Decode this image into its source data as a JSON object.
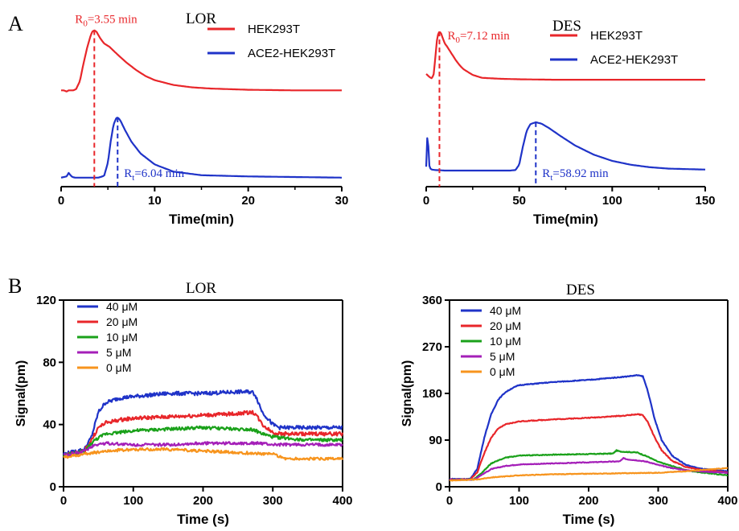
{
  "panel_labels": {
    "a": "A",
    "b": "B"
  },
  "chart_data": [
    {
      "id": "a-lor",
      "type": "line",
      "title": "LOR",
      "xlabel": "Time(min)",
      "ylabel": "",
      "xlim": [
        0,
        30
      ],
      "xticks": [
        0,
        10,
        20,
        30
      ],
      "legend_position": "top-right",
      "series": [
        {
          "name": "HEK293T",
          "color": "#e8262a",
          "offset": 0.58,
          "x": [
            0,
            0.3,
            0.6,
            0.8,
            1.0,
            1.3,
            1.6,
            2.0,
            2.4,
            2.8,
            3.1,
            3.3,
            3.55,
            3.8,
            4.2,
            4.6,
            5.2,
            6.0,
            7.0,
            8.0,
            9.0,
            10,
            12,
            14,
            16,
            20,
            25,
            30
          ],
          "y": [
            0.0,
            0.0,
            -0.02,
            0.0,
            0.0,
            0.0,
            0.02,
            0.15,
            0.45,
            0.72,
            0.88,
            0.97,
            1.0,
            0.97,
            0.86,
            0.78,
            0.72,
            0.6,
            0.46,
            0.34,
            0.24,
            0.17,
            0.09,
            0.05,
            0.03,
            0.01,
            0.0,
            0.0
          ]
        },
        {
          "name": "ACE2-HEK293T",
          "color": "#1f33c8",
          "offset": 0.0,
          "x": [
            0,
            0.6,
            0.8,
            1.0,
            1.2,
            1.5,
            2.0,
            3.0,
            4.0,
            4.6,
            5.0,
            5.3,
            5.6,
            5.9,
            6.04,
            6.3,
            6.8,
            7.5,
            8.5,
            10,
            12,
            15,
            20,
            25,
            30
          ],
          "y": [
            0.0,
            0.02,
            0.08,
            0.04,
            0.01,
            0.0,
            0.0,
            0.0,
            0.0,
            0.03,
            0.25,
            0.6,
            0.88,
            0.99,
            1.0,
            0.96,
            0.8,
            0.6,
            0.4,
            0.22,
            0.1,
            0.04,
            0.02,
            0.01,
            0.0
          ]
        }
      ],
      "markers": [
        {
          "label_base": "R",
          "label_sub": "0",
          "label_value": "=3.55 min",
          "x": 3.55,
          "series": 0,
          "color": "#e8262a",
          "label_side": "above"
        },
        {
          "label_base": "R",
          "label_sub": "t",
          "label_value": "=6.04 min",
          "x": 6.04,
          "series": 1,
          "color": "#1f33c8",
          "label_side": "below"
        }
      ]
    },
    {
      "id": "a-des",
      "type": "line",
      "title": "DES",
      "xlabel": "Time(min)",
      "ylabel": "",
      "xlim": [
        0,
        150
      ],
      "xticks": [
        0,
        50,
        100,
        150
      ],
      "legend_position": "top-right",
      "series": [
        {
          "name": "HEK293T",
          "color": "#e8262a",
          "offset": 0.62,
          "x": [
            0,
            2,
            3,
            4,
            5,
            6,
            7,
            7.12,
            8,
            9,
            10,
            11,
            12,
            14,
            16,
            18,
            20,
            25,
            30,
            40,
            50,
            70,
            100,
            130,
            150
          ],
          "y": [
            0.12,
            0.05,
            0.03,
            0.1,
            0.5,
            0.9,
            0.99,
            1.0,
            0.96,
            0.85,
            0.75,
            0.7,
            0.64,
            0.52,
            0.4,
            0.3,
            0.22,
            0.1,
            0.04,
            0.02,
            0.01,
            0.0,
            0.0,
            0.0,
            0.0
          ]
        },
        {
          "name": "ACE2-HEK293T",
          "color": "#1f33c8",
          "offset": 0.0,
          "x": [
            0,
            0.8,
            1.2,
            1.6,
            2.0,
            3,
            5,
            10,
            20,
            30,
            40,
            45,
            48,
            50,
            52,
            54,
            56,
            58.92,
            62,
            66,
            72,
            80,
            90,
            100,
            110,
            120,
            130,
            150
          ],
          "y": [
            0.08,
            0.9,
            0.45,
            0.12,
            0.05,
            0.02,
            0.01,
            0.0,
            0.0,
            0.0,
            0.0,
            0.0,
            0.01,
            0.12,
            0.5,
            0.82,
            0.96,
            1.0,
            0.97,
            0.88,
            0.72,
            0.52,
            0.33,
            0.2,
            0.12,
            0.07,
            0.04,
            0.02
          ]
        }
      ],
      "markers": [
        {
          "label_base": "R",
          "label_sub": "0",
          "label_value": "=7.12 min",
          "x": 7.12,
          "series": 0,
          "color": "#e8262a",
          "label_side": "right-top"
        },
        {
          "label_base": "R",
          "label_sub": "t",
          "label_value": "=58.92 min",
          "x": 58.92,
          "series": 1,
          "color": "#1f33c8",
          "label_side": "below"
        }
      ]
    },
    {
      "id": "b-lor",
      "type": "line",
      "title": "LOR",
      "xlabel": "Time (s)",
      "ylabel": "Signal(pm)",
      "xlim": [
        0,
        400
      ],
      "ylim": [
        0,
        120
      ],
      "xticks": [
        0,
        100,
        200,
        300,
        400
      ],
      "yticks": [
        0,
        40,
        80,
        120
      ],
      "legend_position": "top-left",
      "series": [
        {
          "name": "40 μM",
          "color": "#1f33c8",
          "noise": 1.2,
          "x": [
            0,
            30,
            40,
            50,
            60,
            80,
            100,
            150,
            200,
            250,
            270,
            275,
            285,
            300,
            310,
            350,
            400
          ],
          "y": [
            21,
            24,
            32,
            48,
            54,
            57,
            58,
            60,
            60,
            61,
            61,
            59,
            48,
            40,
            38,
            38,
            38
          ]
        },
        {
          "name": "20 μM",
          "color": "#e8262a",
          "noise": 1.2,
          "x": [
            0,
            30,
            40,
            50,
            60,
            80,
            100,
            150,
            200,
            250,
            270,
            275,
            285,
            300,
            310,
            350,
            400
          ],
          "y": [
            20,
            23,
            30,
            38,
            41,
            43,
            44,
            45,
            46,
            47,
            48,
            47,
            40,
            35,
            34,
            34,
            34
          ]
        },
        {
          "name": "10 μM",
          "color": "#1aa11a",
          "noise": 1.0,
          "x": [
            0,
            30,
            45,
            60,
            100,
            150,
            200,
            250,
            270,
            285,
            300,
            350,
            400
          ],
          "y": [
            20,
            23,
            30,
            34,
            36,
            37,
            38,
            37,
            37,
            34,
            32,
            30,
            30
          ]
        },
        {
          "name": "5 μM",
          "color": "#a41fb8",
          "noise": 0.9,
          "x": [
            0,
            30,
            45,
            60,
            100,
            150,
            200,
            250,
            280,
            300,
            350,
            400
          ],
          "y": [
            20,
            23,
            27,
            28,
            27,
            27,
            28,
            28,
            28,
            27,
            27,
            27
          ]
        },
        {
          "name": "0 μM",
          "color": "#f7941d",
          "noise": 0.9,
          "x": [
            0,
            30,
            60,
            100,
            150,
            200,
            250,
            300,
            320,
            350,
            400
          ],
          "y": [
            19,
            21,
            23,
            24,
            24,
            23,
            22,
            21,
            18,
            18,
            18
          ]
        }
      ]
    },
    {
      "id": "b-des",
      "type": "line",
      "title": "DES",
      "xlabel": "Time (s)",
      "ylabel": "Signal(pm)",
      "xlim": [
        0,
        400
      ],
      "ylim": [
        0,
        360
      ],
      "xticks": [
        0,
        100,
        200,
        300,
        400
      ],
      "yticks": [
        0,
        90,
        180,
        270,
        360
      ],
      "legend_position": "top-left",
      "series": [
        {
          "name": "40 μM",
          "color": "#1f33c8",
          "noise": 0.8,
          "x": [
            0,
            30,
            40,
            50,
            60,
            70,
            80,
            90,
            100,
            150,
            200,
            250,
            270,
            278,
            285,
            295,
            305,
            320,
            340,
            360,
            380,
            400
          ],
          "y": [
            15,
            15,
            35,
            95,
            140,
            168,
            182,
            190,
            196,
            202,
            206,
            212,
            215,
            213,
            185,
            130,
            90,
            60,
            42,
            35,
            32,
            30
          ]
        },
        {
          "name": "20 μM",
          "color": "#e8262a",
          "noise": 0.8,
          "x": [
            0,
            30,
            40,
            50,
            60,
            70,
            80,
            100,
            150,
            200,
            250,
            270,
            278,
            285,
            295,
            305,
            320,
            340,
            360,
            380,
            400
          ],
          "y": [
            14,
            14,
            28,
            65,
            95,
            112,
            120,
            126,
            130,
            133,
            137,
            140,
            138,
            125,
            95,
            70,
            50,
            38,
            33,
            30,
            28
          ]
        },
        {
          "name": "10 μM",
          "color": "#1aa11a",
          "noise": 0.8,
          "x": [
            0,
            35,
            45,
            60,
            80,
            100,
            150,
            200,
            235,
            240,
            245,
            270,
            285,
            300,
            320,
            340,
            360,
            380,
            400
          ],
          "y": [
            13,
            14,
            25,
            45,
            56,
            60,
            62,
            63,
            64,
            70,
            68,
            66,
            58,
            48,
            40,
            32,
            28,
            25,
            22
          ]
        },
        {
          "name": "5 μM",
          "color": "#a41fb8",
          "noise": 0.7,
          "x": [
            0,
            35,
            45,
            60,
            80,
            100,
            150,
            200,
            245,
            250,
            255,
            270,
            285,
            300,
            320,
            340,
            360,
            380,
            400
          ],
          "y": [
            13,
            14,
            22,
            34,
            40,
            43,
            45,
            47,
            49,
            55,
            53,
            51,
            48,
            42,
            36,
            32,
            30,
            28,
            27
          ]
        },
        {
          "name": "0 μM",
          "color": "#f7941d",
          "noise": 0.6,
          "x": [
            0,
            40,
            60,
            100,
            150,
            200,
            250,
            300,
            340,
            360,
            380,
            400
          ],
          "y": [
            12,
            14,
            18,
            22,
            24,
            25,
            26,
            27,
            30,
            32,
            34,
            36
          ]
        }
      ]
    }
  ]
}
